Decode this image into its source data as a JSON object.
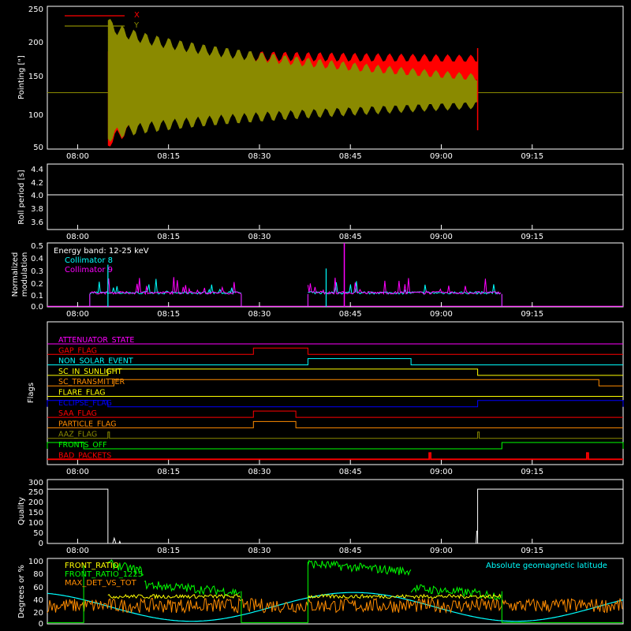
{
  "time_ticks": [
    "08:00",
    "08:15",
    "08:30",
    "08:45",
    "09:00",
    "09:15"
  ],
  "colors": {
    "red": "#ff0000",
    "olive": "#8a8a00",
    "cyan": "#00ffff",
    "magenta": "#ff00ff",
    "green": "#00ff00",
    "orange": "#ff8c00",
    "yellow": "#ffff00",
    "blue": "#0000ff",
    "white": "#ffffff"
  },
  "chart_data": [
    {
      "id": "pointing",
      "type": "area",
      "ylabel": "Pointing [\"]",
      "ylim": [
        45,
        250
      ],
      "yticks": [
        "250",
        "200",
        "150",
        "100",
        "50"
      ],
      "legend": {
        "position": "top-left",
        "entries": [
          "X",
          "Y"
        ]
      },
      "series": [
        {
          "name": "X",
          "baseline": 126,
          "start": "08:05",
          "end": "09:06",
          "upper_start": 185,
          "upper_end": 175,
          "upper_end_inner": 145,
          "lower_start": 50,
          "lower_end": 140
        },
        {
          "name": "Y",
          "baseline": 126,
          "start": "08:05",
          "end": "09:06",
          "upper_start": 230,
          "upper_end": 148,
          "lower_start": 60,
          "lower_end": 108
        }
      ]
    },
    {
      "id": "roll",
      "type": "line",
      "ylabel": "Roll period [s]",
      "ylim": [
        3.5,
        4.5
      ],
      "yticks": [
        "4.4",
        "4.2",
        "4.0",
        "3.8",
        "3.6"
      ],
      "series": [
        {
          "name": "",
          "value": 4.02
        }
      ]
    },
    {
      "id": "modulation",
      "type": "line",
      "ylabel": "Normalized modulation",
      "ylabel_lines": [
        "Normalized",
        "modulation"
      ],
      "ylim": [
        0.0,
        0.5
      ],
      "yticks": [
        "0.5",
        "0.4",
        "0.3",
        "0.2",
        "0.1",
        "0.0"
      ],
      "annotation": "Energy band: 12-25 keV",
      "series": [
        {
          "name": "Collimator 8",
          "segments": [
            [
              "08:02",
              "08:27"
            ],
            [
              "08:38",
              "09:10"
            ]
          ],
          "level": 0.1
        },
        {
          "name": "Collimator 9",
          "segments": [
            [
              "08:02",
              "08:27"
            ],
            [
              "08:38",
              "09:10"
            ]
          ],
          "level": 0.1
        }
      ]
    },
    {
      "id": "flags",
      "type": "line",
      "ylabel": "Flags",
      "flags": [
        {
          "name": "ATTENUATOR_STATE",
          "color": "magenta",
          "on": []
        },
        {
          "name": "GAP_FLAG",
          "color": "red",
          "on": [
            [
              "08:29",
              "08:38"
            ]
          ]
        },
        {
          "name": "NON_SOLAR_EVENT",
          "color": "cyan",
          "on": [
            [
              "08:38",
              "08:55"
            ]
          ]
        },
        {
          "name": "SC_IN_SUNLIGHT",
          "color": "yellow",
          "on": [
            [
              "08:05",
              "09:06"
            ]
          ]
        },
        {
          "name": "SC_TRANSMITTER",
          "color": "orange",
          "on": [
            [
              "08:06",
              "09:26"
            ]
          ]
        },
        {
          "name": "FLARE_FLAG",
          "color": "yellow",
          "on": []
        },
        {
          "name": "ECLIPSE_FLAG",
          "color": "blue",
          "on": [
            [
              "07:55",
              "08:05"
            ],
            [
              "09:06",
              "09:30"
            ]
          ]
        },
        {
          "name": "SAA_FLAG",
          "color": "red",
          "on": [
            [
              "08:29",
              "08:36"
            ]
          ]
        },
        {
          "name": "PARTICLE_FLAG",
          "color": "orange",
          "on": [
            [
              "08:29",
              "08:36"
            ]
          ]
        },
        {
          "name": "AAZ_FLAG",
          "color": "olive",
          "on": [
            [
              "08:05",
              "08:05"
            ],
            [
              "09:06",
              "09:06"
            ]
          ]
        },
        {
          "name": "FRONTS_OFF",
          "color": "green",
          "on": [
            [
              "07:55",
              "08:01"
            ],
            [
              "09:10",
              "09:30"
            ]
          ]
        },
        {
          "name": "BAD_PACKETS",
          "color": "red",
          "on": [
            [
              "08:58",
              "08:58"
            ],
            [
              "09:24",
              "09:24"
            ]
          ]
        }
      ]
    },
    {
      "id": "quality",
      "type": "line",
      "ylabel": "Quality",
      "ylim": [
        0,
        300
      ],
      "yticks": [
        "300",
        "250",
        "200",
        "150",
        "100",
        "50",
        "0"
      ],
      "series": [
        {
          "name": "",
          "high": 255,
          "low": 0,
          "low_start": "08:05",
          "low_end": "09:06"
        }
      ]
    },
    {
      "id": "ratios",
      "type": "line",
      "ylabel": "Degrees or %",
      "ylim": [
        0,
        100
      ],
      "yticks": [
        "100",
        "80",
        "60",
        "40",
        "20",
        "0"
      ],
      "legend": {
        "position": "top-left",
        "entries": [
          "FRONT_RATIO",
          "FRONT_RATIO_1225",
          "MAX_DET_VS_TOT"
        ]
      },
      "annotation": "Absolute geomagnetic latitude",
      "series": [
        {
          "name": "FRONT_RATIO",
          "color": "yellow"
        },
        {
          "name": "FRONT_RATIO_1225",
          "color": "green"
        },
        {
          "name": "MAX_DET_VS_TOT",
          "color": "orange"
        },
        {
          "name": "Absolute geomagnetic latitude",
          "color": "cyan"
        }
      ]
    }
  ]
}
